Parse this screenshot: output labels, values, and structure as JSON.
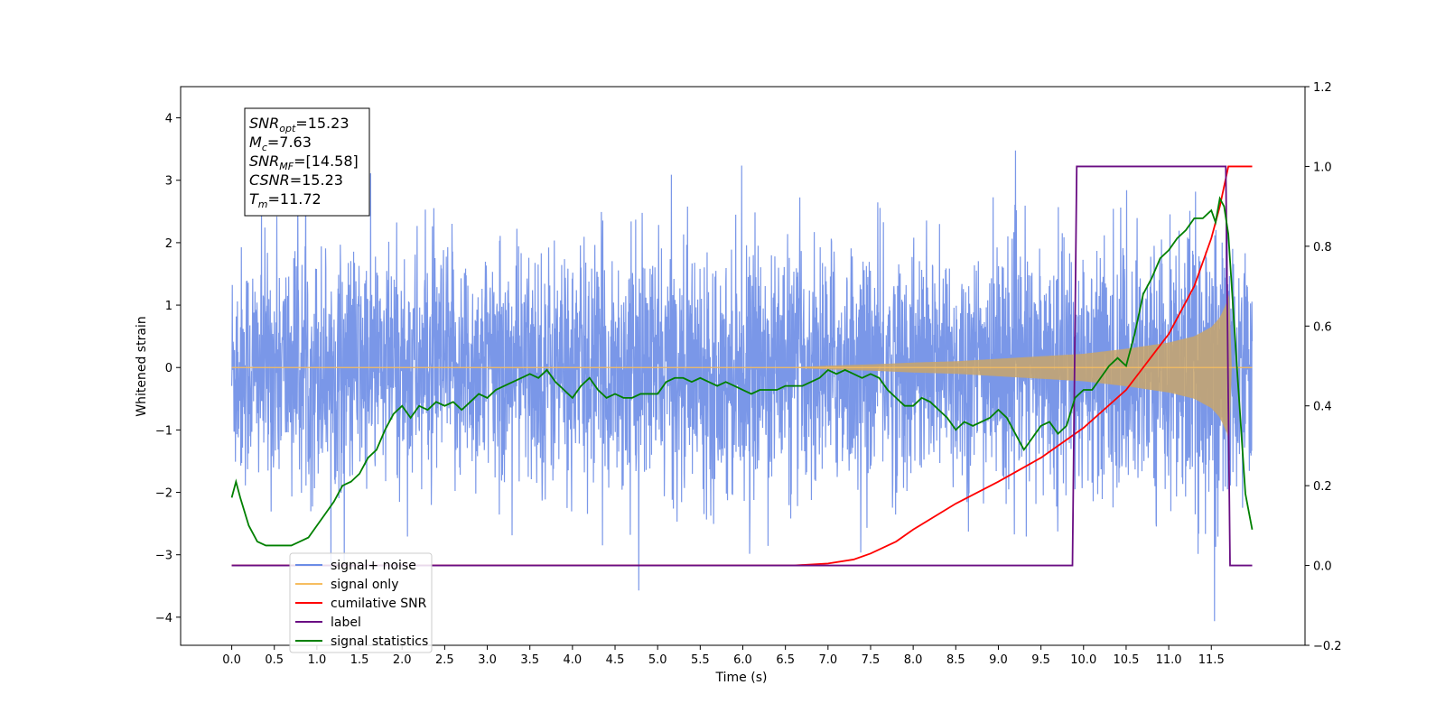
{
  "chart_data": {
    "type": "line",
    "xlabel": "Time (s)",
    "ylabel": "Whitened strain",
    "xlim": [
      -0.6,
      12.6
    ],
    "ylim": [
      -4.45,
      4.5
    ],
    "y2lim": [
      -0.2,
      1.2
    ],
    "x_ticks": [
      "0.0",
      "0.5",
      "1.0",
      "1.5",
      "2.0",
      "2.5",
      "3.0",
      "3.5",
      "4.0",
      "4.5",
      "5.0",
      "5.5",
      "6.0",
      "6.5",
      "7.0",
      "7.5",
      "8.0",
      "8.5",
      "9.0",
      "9.5",
      "10.0",
      "10.5",
      "11.0",
      "11.5"
    ],
    "y_ticks": [
      "4",
      "3",
      "2",
      "1",
      "0",
      "−1",
      "−2",
      "−3",
      "−4"
    ],
    "y2_ticks": [
      "1.2",
      "1.0",
      "0.8",
      "0.6",
      "0.4",
      "0.2",
      "0.0",
      "−0.2"
    ],
    "grid": false,
    "legend_position": "lower-left",
    "info_box": {
      "lines": [
        {
          "main": "SNR",
          "sub": "opt",
          "value": "=15.23"
        },
        {
          "main": "M",
          "sub": "c",
          "value": "=7.63"
        },
        {
          "main": "SNR",
          "sub": "MF",
          "value": "=[14.58]"
        },
        {
          "main": "CSNR",
          "sub": "",
          "value": "=15.23"
        },
        {
          "main": "T",
          "sub": "m",
          "value": "=11.72"
        }
      ]
    },
    "series": [
      {
        "name": "signal+ noise",
        "color": "#6b8ce6",
        "axis": "left",
        "description_values": {
          "x_range": [
            0.0,
            11.98
          ],
          "noise_std": 1.0,
          "chirp_merger_time": 11.72
        }
      },
      {
        "name": "signal only",
        "color": "#f6bd60",
        "axis": "left",
        "chirp_envelope": {
          "x": [
            0.0,
            6.5,
            7.0,
            7.5,
            8.0,
            8.5,
            9.0,
            9.5,
            10.0,
            10.5,
            11.0,
            11.3,
            11.5,
            11.6,
            11.65,
            11.7,
            11.72,
            11.74,
            11.8,
            11.98
          ],
          "y": [
            0.0,
            0.0,
            0.03,
            0.05,
            0.08,
            0.1,
            0.14,
            0.18,
            0.22,
            0.3,
            0.4,
            0.5,
            0.65,
            0.8,
            0.95,
            1.1,
            1.25,
            0.0,
            0.0,
            0.0
          ]
        }
      },
      {
        "name": "cumilative SNR",
        "color": "#ff0000",
        "axis": "right",
        "x": [
          0.0,
          6.6,
          7.0,
          7.3,
          7.5,
          7.8,
          8.0,
          8.5,
          9.0,
          9.5,
          10.0,
          10.5,
          11.0,
          11.3,
          11.5,
          11.6,
          11.7,
          11.75,
          11.98
        ],
        "y": [
          0.0,
          0.0,
          0.005,
          0.015,
          0.03,
          0.06,
          0.09,
          0.155,
          0.21,
          0.27,
          0.345,
          0.44,
          0.58,
          0.7,
          0.82,
          0.9,
          1.0,
          1.0,
          1.0
        ]
      },
      {
        "name": "label",
        "color": "#6a0d83",
        "axis": "right",
        "x": [
          0.0,
          9.87,
          9.92,
          11.67,
          11.72,
          11.98
        ],
        "y": [
          0.0,
          0.0,
          1.0,
          1.0,
          0.0,
          0.0
        ]
      },
      {
        "name": "signal statistics",
        "color": "#008000",
        "axis": "right",
        "x": [
          0.0,
          0.05,
          0.1,
          0.2,
          0.3,
          0.4,
          0.5,
          0.6,
          0.7,
          0.8,
          0.9,
          1.0,
          1.1,
          1.2,
          1.3,
          1.4,
          1.5,
          1.6,
          1.7,
          1.8,
          1.9,
          2.0,
          2.1,
          2.2,
          2.3,
          2.4,
          2.5,
          2.6,
          2.7,
          2.8,
          2.9,
          3.0,
          3.1,
          3.2,
          3.3,
          3.4,
          3.5,
          3.6,
          3.7,
          3.8,
          3.9,
          4.0,
          4.1,
          4.2,
          4.3,
          4.4,
          4.5,
          4.6,
          4.7,
          4.8,
          4.9,
          5.0,
          5.1,
          5.2,
          5.3,
          5.4,
          5.5,
          5.6,
          5.7,
          5.8,
          5.9,
          6.0,
          6.1,
          6.2,
          6.3,
          6.4,
          6.5,
          6.6,
          6.7,
          6.8,
          6.9,
          7.0,
          7.1,
          7.2,
          7.3,
          7.4,
          7.5,
          7.6,
          7.7,
          7.8,
          7.9,
          8.0,
          8.1,
          8.2,
          8.3,
          8.4,
          8.5,
          8.6,
          8.7,
          8.8,
          8.9,
          9.0,
          9.1,
          9.2,
          9.3,
          9.4,
          9.5,
          9.6,
          9.7,
          9.8,
          9.9,
          10.0,
          10.1,
          10.2,
          10.3,
          10.4,
          10.5,
          10.6,
          10.7,
          10.8,
          10.9,
          11.0,
          11.1,
          11.2,
          11.3,
          11.4,
          11.5,
          11.55,
          11.6,
          11.65,
          11.7,
          11.8,
          11.9,
          11.98
        ],
        "y": [
          0.17,
          0.21,
          0.17,
          0.1,
          0.06,
          0.05,
          0.05,
          0.05,
          0.05,
          0.06,
          0.07,
          0.1,
          0.13,
          0.16,
          0.2,
          0.21,
          0.23,
          0.27,
          0.29,
          0.34,
          0.38,
          0.4,
          0.37,
          0.4,
          0.39,
          0.41,
          0.4,
          0.41,
          0.39,
          0.41,
          0.43,
          0.42,
          0.44,
          0.45,
          0.46,
          0.47,
          0.48,
          0.47,
          0.49,
          0.46,
          0.44,
          0.42,
          0.45,
          0.47,
          0.44,
          0.42,
          0.43,
          0.42,
          0.42,
          0.43,
          0.43,
          0.43,
          0.46,
          0.47,
          0.47,
          0.46,
          0.47,
          0.46,
          0.45,
          0.46,
          0.45,
          0.44,
          0.43,
          0.44,
          0.44,
          0.44,
          0.45,
          0.45,
          0.45,
          0.46,
          0.47,
          0.49,
          0.48,
          0.49,
          0.48,
          0.47,
          0.48,
          0.47,
          0.44,
          0.42,
          0.4,
          0.4,
          0.42,
          0.41,
          0.39,
          0.37,
          0.34,
          0.36,
          0.35,
          0.36,
          0.37,
          0.39,
          0.37,
          0.33,
          0.29,
          0.32,
          0.35,
          0.36,
          0.33,
          0.35,
          0.42,
          0.44,
          0.44,
          0.47,
          0.5,
          0.52,
          0.5,
          0.58,
          0.68,
          0.72,
          0.77,
          0.79,
          0.82,
          0.84,
          0.87,
          0.87,
          0.89,
          0.86,
          0.92,
          0.9,
          0.83,
          0.5,
          0.18,
          0.09
        ]
      }
    ]
  }
}
